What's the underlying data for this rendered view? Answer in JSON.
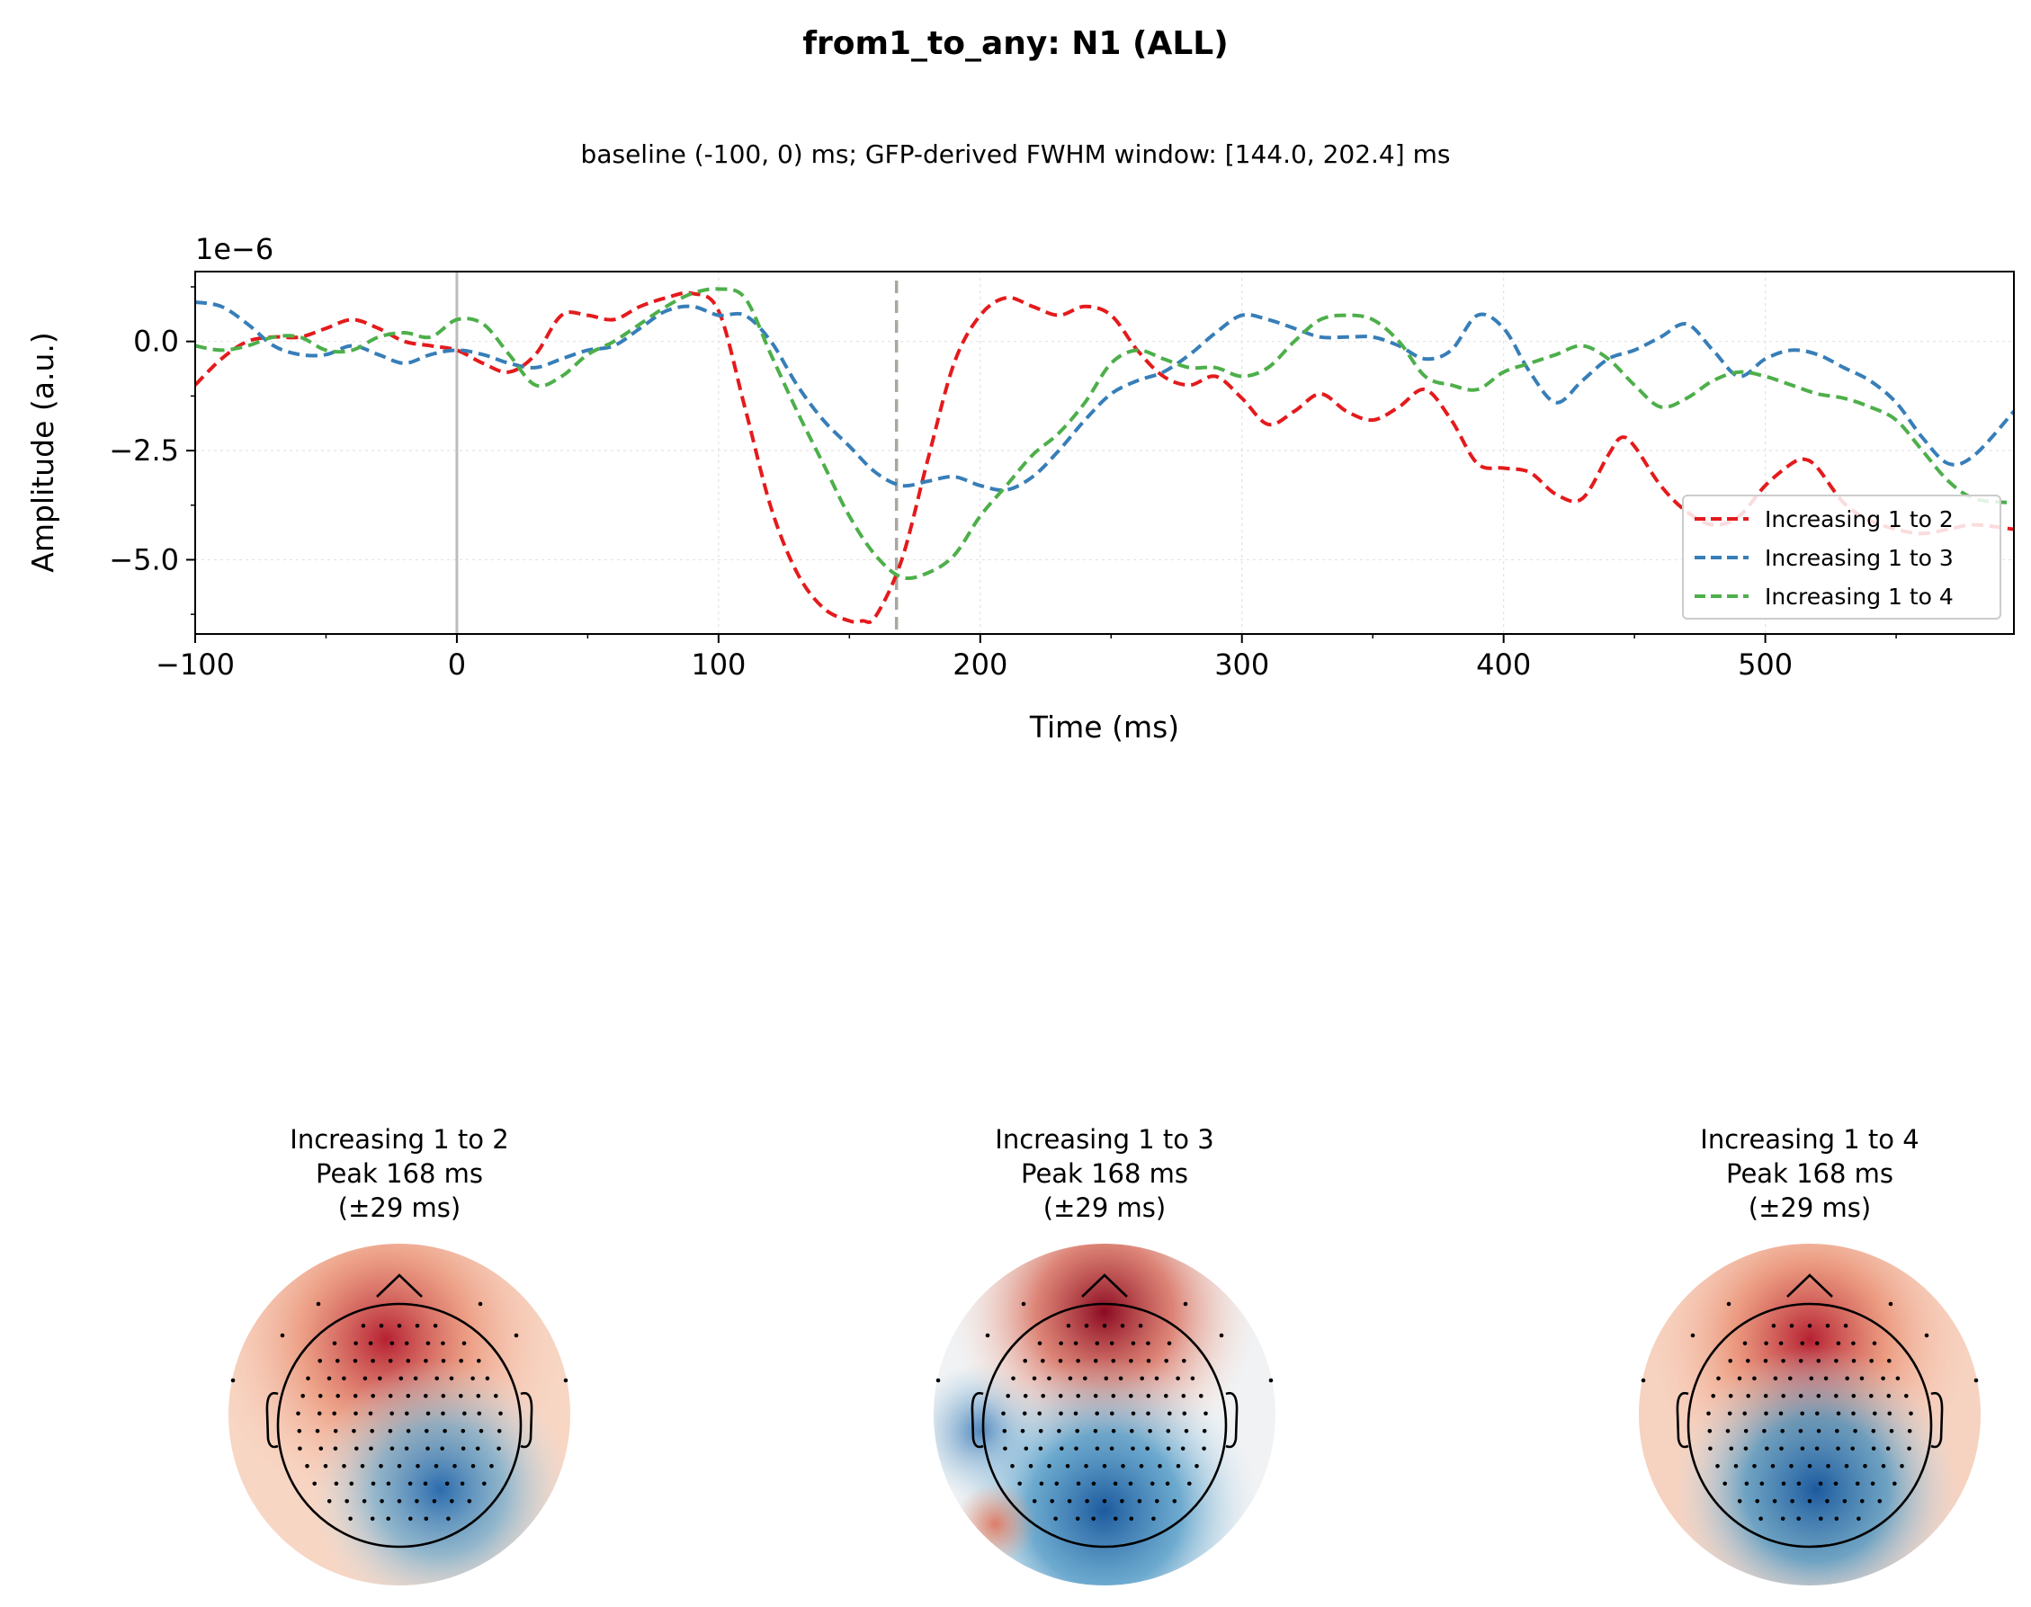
{
  "figure": {
    "title": "from1_to_any: N1 (ALL)",
    "subtitle": "baseline (-100, 0) ms; GFP-derived FWHM window: [144.0, 202.4] ms"
  },
  "chart_data": [
    {
      "type": "line",
      "xlabel": "Time (ms)",
      "ylabel": "Amplitude (a.u.)",
      "y_scale_label": "1e−6",
      "xlim": [
        -100,
        595
      ],
      "ylim": [
        -6.7,
        1.6
      ],
      "x_ticks": [
        -100,
        0,
        100,
        200,
        300,
        400,
        500
      ],
      "x_tick_labels": [
        "−100",
        "0",
        "100",
        "200",
        "300",
        "400",
        "500"
      ],
      "y_ticks": [
        0.0,
        -2.5,
        -5.0
      ],
      "y_tick_labels": [
        "0.0",
        "−2.5",
        "−5.0"
      ],
      "grid": true,
      "legend_position": "lower-right",
      "markers": {
        "onset_x": 0,
        "peak_x": 168
      },
      "series": [
        {
          "name": "Increasing 1 to 2",
          "color": "#e41a1c",
          "style": "dashed",
          "x": [
            -100,
            -90,
            -80,
            -70,
            -60,
            -50,
            -40,
            -30,
            -20,
            -10,
            0,
            10,
            20,
            30,
            40,
            50,
            60,
            70,
            80,
            90,
            100,
            110,
            120,
            130,
            140,
            150,
            155,
            160,
            170,
            180,
            190,
            200,
            210,
            220,
            230,
            240,
            250,
            260,
            270,
            280,
            290,
            300,
            310,
            320,
            330,
            340,
            350,
            360,
            370,
            380,
            390,
            400,
            410,
            420,
            430,
            440,
            445,
            450,
            460,
            470,
            480,
            490,
            500,
            510,
            515,
            520,
            530,
            540,
            550,
            560,
            570,
            580,
            595
          ],
          "y": [
            -1.0,
            -0.4,
            0.0,
            0.1,
            0.1,
            0.3,
            0.5,
            0.3,
            0.0,
            -0.1,
            -0.2,
            -0.5,
            -0.7,
            -0.3,
            0.6,
            0.6,
            0.5,
            0.8,
            1.0,
            1.1,
            0.7,
            -1.5,
            -3.8,
            -5.3,
            -6.1,
            -6.4,
            -6.4,
            -6.3,
            -5.0,
            -2.7,
            -0.5,
            0.6,
            1.0,
            0.8,
            0.6,
            0.8,
            0.6,
            -0.2,
            -0.8,
            -1.0,
            -0.8,
            -1.3,
            -1.9,
            -1.6,
            -1.2,
            -1.6,
            -1.8,
            -1.5,
            -1.1,
            -1.8,
            -2.8,
            -2.9,
            -3.0,
            -3.5,
            -3.6,
            -2.6,
            -2.2,
            -2.4,
            -3.3,
            -3.9,
            -4.2,
            -4.0,
            -3.3,
            -2.8,
            -2.7,
            -2.9,
            -3.7,
            -4.1,
            -4.3,
            -4.4,
            -4.3,
            -4.2,
            -4.3
          ]
        },
        {
          "name": "Increasing 1 to 3",
          "color": "#377eb8",
          "style": "dashed",
          "x": [
            -100,
            -90,
            -80,
            -70,
            -60,
            -50,
            -40,
            -30,
            -20,
            -10,
            0,
            10,
            20,
            30,
            40,
            50,
            60,
            70,
            80,
            90,
            100,
            110,
            120,
            130,
            140,
            150,
            160,
            170,
            180,
            190,
            200,
            210,
            220,
            230,
            240,
            250,
            260,
            270,
            280,
            290,
            300,
            310,
            320,
            330,
            340,
            350,
            360,
            370,
            380,
            390,
            400,
            410,
            420,
            430,
            440,
            450,
            460,
            470,
            480,
            490,
            500,
            510,
            520,
            530,
            540,
            550,
            560,
            570,
            580,
            595
          ],
          "y": [
            0.9,
            0.8,
            0.4,
            -0.1,
            -0.3,
            -0.3,
            -0.1,
            -0.3,
            -0.5,
            -0.3,
            -0.2,
            -0.3,
            -0.5,
            -0.6,
            -0.4,
            -0.2,
            -0.1,
            0.3,
            0.7,
            0.8,
            0.6,
            0.6,
            0.0,
            -1.0,
            -1.8,
            -2.4,
            -3.0,
            -3.3,
            -3.2,
            -3.1,
            -3.3,
            -3.4,
            -3.1,
            -2.5,
            -1.8,
            -1.2,
            -0.9,
            -0.7,
            -0.3,
            0.2,
            0.6,
            0.5,
            0.3,
            0.1,
            0.1,
            0.1,
            -0.1,
            -0.4,
            -0.2,
            0.6,
            0.3,
            -0.7,
            -1.4,
            -0.9,
            -0.4,
            -0.2,
            0.1,
            0.4,
            -0.2,
            -0.8,
            -0.4,
            -0.2,
            -0.3,
            -0.6,
            -0.9,
            -1.4,
            -2.2,
            -2.8,
            -2.6,
            -1.6
          ]
        },
        {
          "name": "Increasing 1 to 4",
          "color": "#4daf4a",
          "style": "dashed",
          "x": [
            -100,
            -90,
            -80,
            -70,
            -60,
            -50,
            -40,
            -30,
            -20,
            -10,
            0,
            10,
            20,
            30,
            40,
            50,
            60,
            70,
            80,
            90,
            100,
            110,
            120,
            130,
            140,
            150,
            160,
            170,
            180,
            190,
            200,
            210,
            220,
            230,
            240,
            250,
            260,
            270,
            280,
            290,
            300,
            310,
            320,
            330,
            340,
            350,
            360,
            370,
            380,
            390,
            400,
            410,
            420,
            430,
            440,
            450,
            460,
            470,
            480,
            490,
            500,
            510,
            520,
            530,
            540,
            550,
            560,
            570,
            580,
            595
          ],
          "y": [
            -0.1,
            -0.2,
            -0.1,
            0.1,
            0.1,
            -0.2,
            -0.2,
            0.1,
            0.2,
            0.1,
            0.5,
            0.4,
            -0.3,
            -1.0,
            -0.8,
            -0.3,
            0.0,
            0.4,
            0.8,
            1.1,
            1.2,
            1.0,
            -0.3,
            -1.6,
            -2.8,
            -4.0,
            -4.9,
            -5.4,
            -5.3,
            -4.9,
            -4.0,
            -3.3,
            -2.6,
            -2.1,
            -1.4,
            -0.5,
            -0.2,
            -0.4,
            -0.6,
            -0.6,
            -0.8,
            -0.6,
            0.0,
            0.5,
            0.6,
            0.5,
            0.0,
            -0.8,
            -1.0,
            -1.1,
            -0.7,
            -0.5,
            -0.3,
            -0.1,
            -0.4,
            -1.0,
            -1.5,
            -1.3,
            -0.9,
            -0.7,
            -0.8,
            -1.0,
            -1.2,
            -1.3,
            -1.5,
            -1.8,
            -2.5,
            -3.2,
            -3.6,
            -3.7
          ]
        }
      ]
    },
    {
      "type": "heatmap",
      "topomaps": [
        {
          "title_lines": [
            "Increasing 1 to 2",
            "Peak 168 ms",
            "(±29 ms)"
          ]
        },
        {
          "title_lines": [
            "Increasing 1 to 3",
            "Peak 168 ms",
            "(±29 ms)"
          ]
        },
        {
          "title_lines": [
            "Increasing 1 to 4",
            "Peak 168 ms",
            "(±29 ms)"
          ]
        }
      ]
    }
  ]
}
